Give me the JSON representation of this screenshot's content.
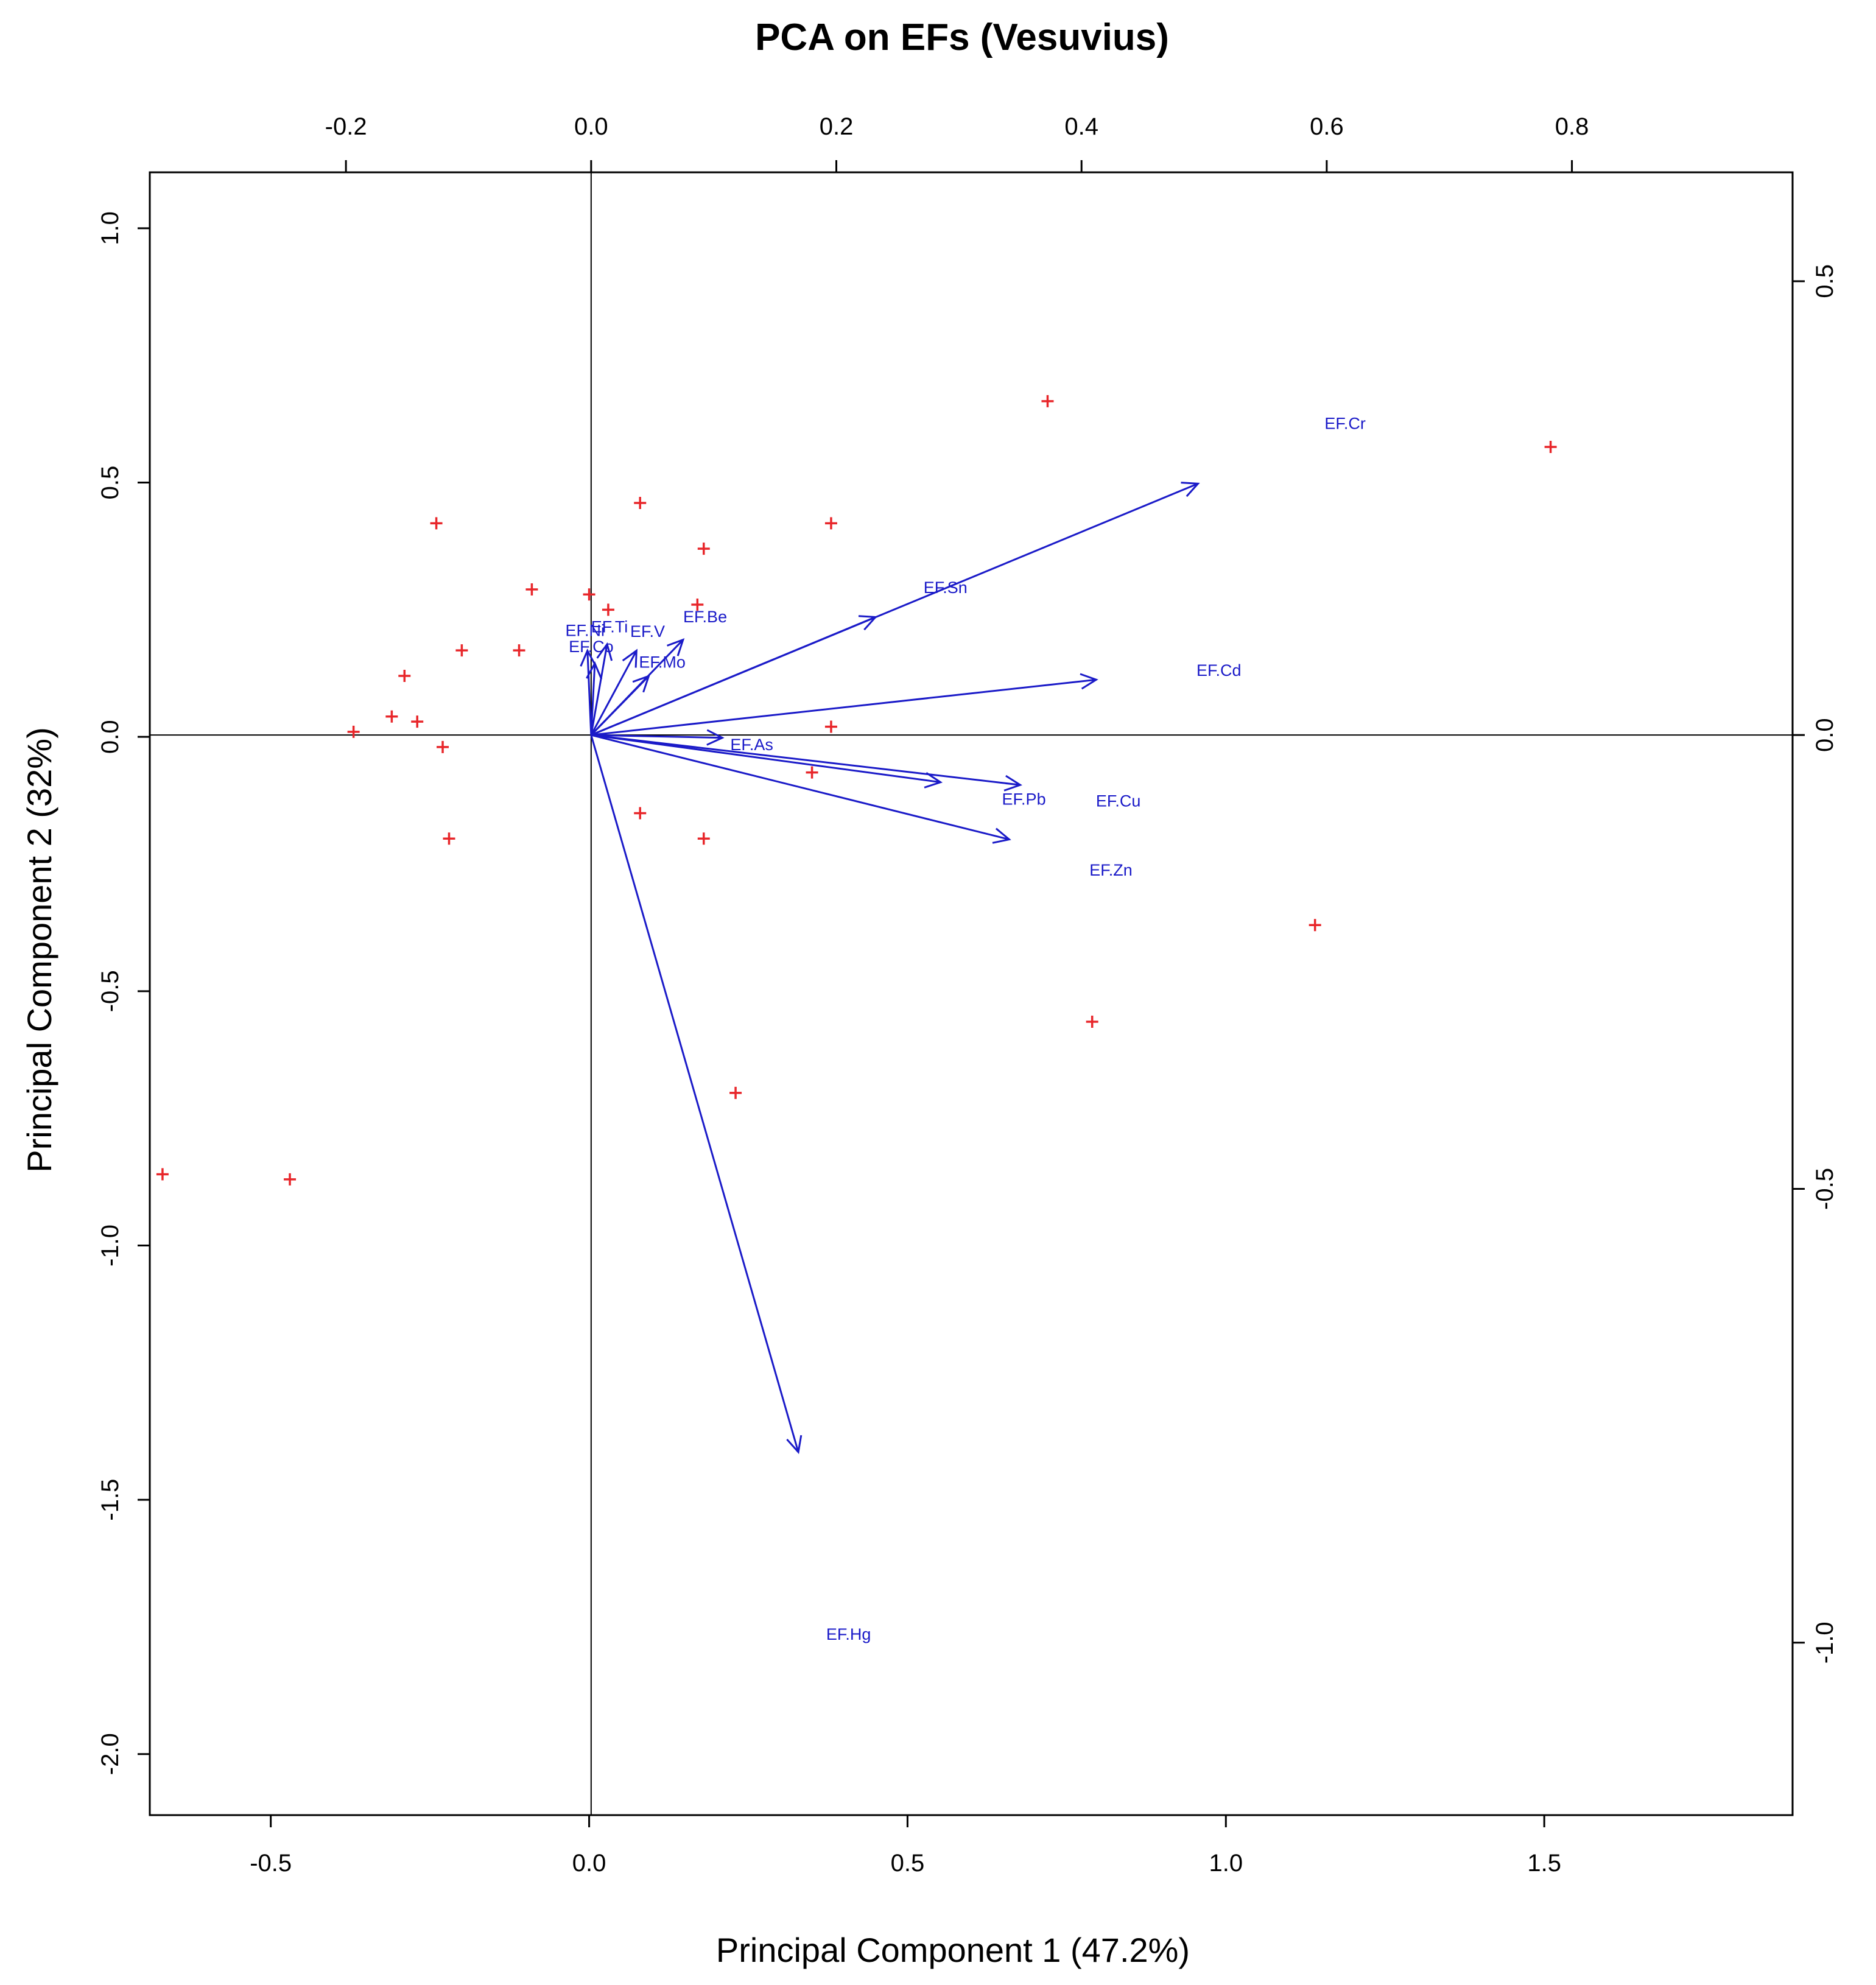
{
  "chart_data": {
    "type": "scatter",
    "subtype": "pca-biplot",
    "title": "PCA on EFs (Vesuvius)",
    "xlabel": "Principal Component 1 (47.2%)",
    "ylabel": "Principal Component 2 (32%)",
    "xlim": [
      -0.69,
      1.89
    ],
    "ylim": [
      -2.12,
      1.11
    ],
    "xticks": [
      -0.5,
      0.0,
      0.5,
      1.0,
      1.5
    ],
    "yticks": [
      1.0,
      0.5,
      0.0,
      -0.5,
      -1.0,
      -1.5,
      -2.0
    ],
    "xtick_labels": [
      "-0.5",
      "0.0",
      "0.5",
      "1.0",
      "1.5"
    ],
    "ytick_labels": [
      "1.0",
      "0.5",
      "0.0",
      "-0.5",
      "-1.0",
      "-1.5",
      "-2.0"
    ],
    "top_xlim": [
      -0.36,
      0.98
    ],
    "right_ylim": [
      -1.19,
      0.62
    ],
    "top_xticks": [
      -0.2,
      0.0,
      0.2,
      0.4,
      0.6,
      0.8
    ],
    "right_yticks": [
      0.5,
      0.0,
      -0.5,
      -1.0
    ],
    "top_xtick_labels": [
      "-0.2",
      "0.0",
      "0.2",
      "0.4",
      "0.6",
      "0.8"
    ],
    "right_ytick_labels": [
      "0.5",
      "0.0",
      "-0.5",
      "-1.0"
    ],
    "reference_lines": {
      "x": 0,
      "y": 0
    },
    "grid": false,
    "colors": {
      "points": "#e8262a",
      "loadings": "#1a1ac8",
      "axes": "#000000"
    },
    "scores": [
      {
        "x": 0.72,
        "y": 0.66
      },
      {
        "x": 1.51,
        "y": 0.57
      },
      {
        "x": -0.24,
        "y": 0.42
      },
      {
        "x": 0.08,
        "y": 0.46
      },
      {
        "x": 0.38,
        "y": 0.42
      },
      {
        "x": 0.18,
        "y": 0.37
      },
      {
        "x": -0.09,
        "y": 0.29
      },
      {
        "x": 0.0,
        "y": 0.28
      },
      {
        "x": 0.03,
        "y": 0.25
      },
      {
        "x": 0.17,
        "y": 0.26
      },
      {
        "x": -0.2,
        "y": 0.17
      },
      {
        "x": -0.11,
        "y": 0.17
      },
      {
        "x": -0.29,
        "y": 0.12
      },
      {
        "x": -0.31,
        "y": 0.04
      },
      {
        "x": -0.27,
        "y": 0.03
      },
      {
        "x": -0.37,
        "y": 0.01
      },
      {
        "x": -0.23,
        "y": -0.02
      },
      {
        "x": 0.38,
        "y": 0.02
      },
      {
        "x": 0.35,
        "y": -0.07
      },
      {
        "x": 0.08,
        "y": -0.15
      },
      {
        "x": 0.18,
        "y": -0.2
      },
      {
        "x": -0.22,
        "y": -0.2
      },
      {
        "x": 1.14,
        "y": -0.37
      },
      {
        "x": 0.79,
        "y": -0.56
      },
      {
        "x": 0.23,
        "y": -0.7
      },
      {
        "x": -0.67,
        "y": -0.86
      },
      {
        "x": -0.47,
        "y": -0.87
      }
    ],
    "loadings": [
      {
        "name": "EF.Cr",
        "x": 0.495,
        "y": 0.277,
        "label_x": 0.615,
        "label_y": 0.344
      },
      {
        "name": "EF.Sn",
        "x": 0.232,
        "y": 0.13,
        "label_x": 0.289,
        "label_y": 0.163
      },
      {
        "name": "EF.Cd",
        "x": 0.412,
        "y": 0.061,
        "label_x": 0.512,
        "label_y": 0.072
      },
      {
        "name": "EF.Be",
        "x": 0.075,
        "y": 0.105,
        "label_x": 0.093,
        "label_y": 0.131
      },
      {
        "name": "EF.V",
        "x": 0.037,
        "y": 0.093,
        "label_x": 0.046,
        "label_y": 0.115
      },
      {
        "name": "EF.Ti",
        "x": 0.013,
        "y": 0.1,
        "label_x": 0.015,
        "label_y": 0.12
      },
      {
        "name": "EF.Ni",
        "x": -0.003,
        "y": 0.093,
        "label_x": -0.005,
        "label_y": 0.116
      },
      {
        "name": "EF.Co",
        "x": 0.003,
        "y": 0.079,
        "label_x": 0.0,
        "label_y": 0.098
      },
      {
        "name": "EF.Mo",
        "x": 0.047,
        "y": 0.065,
        "label_x": 0.058,
        "label_y": 0.081
      },
      {
        "name": "EF.As",
        "x": 0.107,
        "y": -0.003,
        "label_x": 0.131,
        "label_y": -0.01
      },
      {
        "name": "EF.Pb",
        "x": 0.35,
        "y": -0.055,
        "label_x": 0.353,
        "label_y": -0.07
      },
      {
        "name": "EF.Cu",
        "x": 0.285,
        "y": -0.052,
        "label_x": 0.43,
        "label_y": -0.072
      },
      {
        "name": "EF.Zn",
        "x": 0.341,
        "y": -0.115,
        "label_x": 0.424,
        "label_y": -0.148
      },
      {
        "name": "EF.Hg",
        "x": 0.169,
        "y": -0.79,
        "label_x": 0.21,
        "label_y": -0.99
      }
    ]
  }
}
